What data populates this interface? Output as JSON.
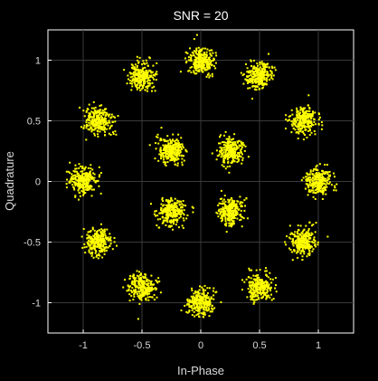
{
  "chart_data": {
    "type": "scatter",
    "title": "SNR = 20",
    "xlabel": "In-Phase",
    "ylabel": "Quadrature",
    "xlim": [
      -1.3,
      1.3
    ],
    "ylim": [
      -1.25,
      1.25
    ],
    "xticks": [
      -1,
      -0.5,
      0,
      0.5,
      1
    ],
    "xtick_labels": [
      "-1",
      "-0.5",
      "0",
      "0.5",
      "1"
    ],
    "yticks": [
      1,
      0.5,
      0,
      -0.5,
      -1
    ],
    "ytick_labels": [
      "1",
      "0.5",
      "0",
      "-0.5",
      "-1"
    ],
    "grid": true,
    "point_color": "#ffff00",
    "background_color": "#000000",
    "series": [
      {
        "cluster_centers": [
          [
            0.25,
            0.25
          ],
          [
            -0.25,
            0.25
          ],
          [
            -0.25,
            -0.25
          ],
          [
            0.25,
            -0.25
          ],
          [
            1.0,
            0.0
          ],
          [
            0.87,
            0.5
          ],
          [
            0.5,
            0.87
          ],
          [
            0.0,
            1.0
          ],
          [
            -0.5,
            0.87
          ],
          [
            -0.87,
            0.5
          ],
          [
            -1.0,
            0.0
          ],
          [
            -0.87,
            -0.5
          ],
          [
            -0.5,
            -0.87
          ],
          [
            0.0,
            -1.0
          ],
          [
            0.5,
            -0.87
          ],
          [
            0.87,
            -0.5
          ]
        ],
        "spread_sigma": 0.055,
        "points_per_cluster": 260
      }
    ]
  }
}
